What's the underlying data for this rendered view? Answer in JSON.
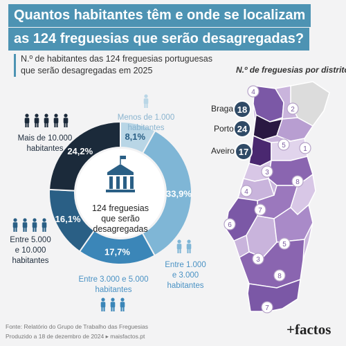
{
  "title": {
    "line1": "Quantos habitantes têm e onde se localizam",
    "line2": "as 124 freguesias que serão desagregadas?"
  },
  "subtitle": {
    "line1": "N.º de habitantes das 124 freguesias portuguesas",
    "line2": "que serão desagregadas em 2025"
  },
  "colors": {
    "title_bg": "#4d93b3",
    "darkest": "#1b2a3a",
    "dark": "#2a5f85",
    "mid": "#3b86b8",
    "light": "#7fb6d6",
    "lightest": "#b9d6e6",
    "map_purple_dark": "#4a2870",
    "map_purple_mid": "#8a65b0",
    "map_purple_light": "#c9b4dc",
    "map_gray": "#dcdcdc"
  },
  "chart_data": [
    {
      "type": "pie",
      "donut": true,
      "center_text": [
        "124 freguesias",
        "que serão",
        "desagregadas"
      ],
      "categories": [
        "Menos de 1.000 habitantes",
        "Entre 1.000 e 3.000 habitantes",
        "Entre 3.000 e 5.000 habitantes",
        "Entre 5.000 e 10.000 habitantes",
        "Mais de 10.000 habitantes"
      ],
      "values": [
        8.1,
        33.9,
        17.7,
        16.1,
        24.2
      ],
      "value_labels": [
        "8,1%",
        "33,9%",
        "17,7%",
        "16,1%",
        "24,2%"
      ],
      "category_labels": [
        [
          "Menos de 1.000",
          "habitantes"
        ],
        [
          "Entre 1.000",
          "e 3.000",
          "habitantes"
        ],
        [
          "Entre 3.000 e 5.000",
          "habitantes"
        ],
        [
          "Entre 5.000",
          "e 10.000",
          "habitantes"
        ],
        [
          "Mais de 10.000",
          "habitantes"
        ]
      ],
      "colors": [
        "#b9d6e6",
        "#7fb6d6",
        "#3b86b8",
        "#2a5f85",
        "#1b2a3a"
      ]
    },
    {
      "type": "map",
      "title": "N.º de freguesias por distrito",
      "labeled_districts": [
        {
          "name": "Braga",
          "value": 18
        },
        {
          "name": "Porto",
          "value": 24
        },
        {
          "name": "Aveiro",
          "value": 17
        }
      ],
      "district_values": [
        4,
        2,
        5,
        1,
        3,
        8,
        4,
        7,
        6,
        5,
        3,
        8,
        7
      ]
    }
  ],
  "footer": {
    "source": "Fonte: Relatório do Grupo de Trabalho das Freguesias",
    "produced": "Produzido a 18 de dezembro de 2024 ▸ maisfactos.pt"
  },
  "logo": "+factos"
}
